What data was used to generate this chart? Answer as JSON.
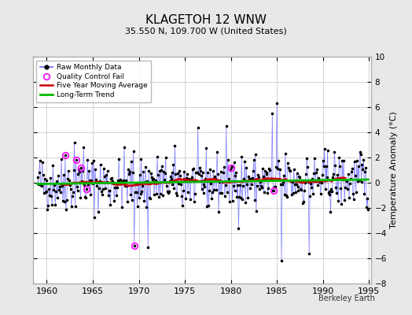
{
  "title": "KLAGETOH 12 WNW",
  "subtitle": "35.550 N, 109.700 W (United States)",
  "ylabel": "Temperature Anomaly (°C)",
  "attribution": "Berkeley Earth",
  "ylim": [
    -8,
    10
  ],
  "xlim": [
    1958.5,
    1995.2
  ],
  "xticks": [
    1960,
    1965,
    1970,
    1975,
    1980,
    1985,
    1990,
    1995
  ],
  "yticks": [
    -8,
    -6,
    -4,
    -2,
    0,
    2,
    4,
    6,
    8,
    10
  ],
  "bg_color": "#e8e8e8",
  "plot_bg_color": "#ffffff",
  "grid_color": "#cccccc",
  "line_color": "#6666ff",
  "dot_color": "#000000",
  "ma_color": "#cc0000",
  "trend_color": "#00bb00",
  "qc_color": "#ff00ff",
  "seed": 42,
  "n_months": 432,
  "start_year": 1959.0,
  "qc_fail_indices": [
    36,
    50,
    57,
    64,
    126,
    252,
    308
  ],
  "long_term_trend_val": 0.05
}
